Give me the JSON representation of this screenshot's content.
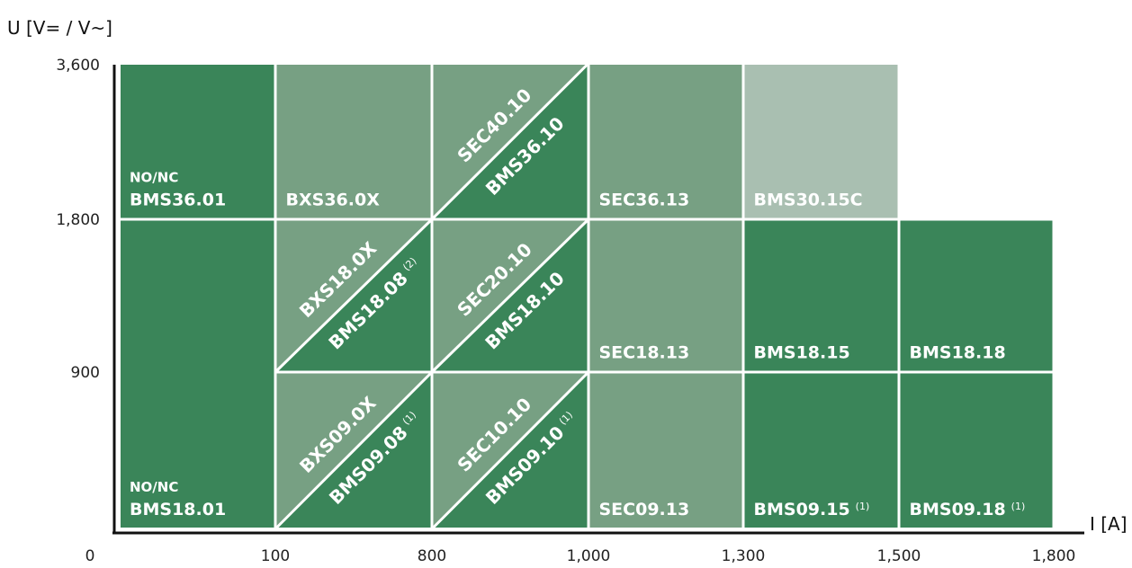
{
  "y_axis_title": "U [V= / V~]",
  "x_axis_title": "I [A]",
  "x_ticks": [
    "0",
    "100",
    "800",
    "1,000",
    "1,300",
    "1,500",
    "1,800"
  ],
  "y_ticks": [
    "3,600",
    "1,800",
    "900"
  ],
  "colors": {
    "dark": "#3a8559",
    "mid": "#77a083",
    "light": "#a9bfb1",
    "grid": "#ffffff",
    "axis": "#111111"
  },
  "cells": [
    {
      "id": "bms36-01",
      "col": 0,
      "row": 0,
      "shade": "dark",
      "label": "BMS36.01",
      "sub": "NO/NC"
    },
    {
      "id": "bms18-01",
      "col": 0,
      "row": 1,
      "rowspan": 2,
      "shade": "dark",
      "label": "BMS18.01",
      "sub": "NO/NC"
    },
    {
      "id": "bxs36-0x",
      "col": 1,
      "row": 0,
      "shade": "mid",
      "label": "BXS36.0X"
    },
    {
      "id": "sec36-13",
      "col": 3,
      "row": 0,
      "shade": "mid",
      "label": "SEC36.13"
    },
    {
      "id": "bms30-15c",
      "col": 4,
      "row": 0,
      "shade": "light",
      "label": "BMS30.15C"
    },
    {
      "id": "sec18-13",
      "col": 3,
      "row": 1,
      "shade": "mid",
      "label": "SEC18.13"
    },
    {
      "id": "bms18-15",
      "col": 4,
      "row": 1,
      "shade": "dark",
      "label": "BMS18.15"
    },
    {
      "id": "bms18-18",
      "col": 5,
      "row": 1,
      "shade": "dark",
      "label": "BMS18.18"
    },
    {
      "id": "sec09-13",
      "col": 3,
      "row": 2,
      "shade": "mid",
      "label": "SEC09.13"
    },
    {
      "id": "bms09-15",
      "col": 4,
      "row": 2,
      "shade": "dark",
      "label": "BMS09.15",
      "note": "(1)"
    },
    {
      "id": "bms09-18",
      "col": 5,
      "row": 2,
      "shade": "dark",
      "label": "BMS09.18",
      "note": "(1)"
    }
  ],
  "split_cells": [
    {
      "id": "sec40-bms36",
      "col": 2,
      "row": 0,
      "upper": "SEC40.10",
      "lower": "BMS36.10",
      "upper_note": "",
      "lower_note": ""
    },
    {
      "id": "bxs18-bms18-08",
      "col": 1,
      "row": 1,
      "upper": "BXS18.0X",
      "lower": "BMS18.08",
      "upper_note": "",
      "lower_note": "(2)"
    },
    {
      "id": "sec20-bms18-10",
      "col": 2,
      "row": 1,
      "upper": "SEC20.10",
      "lower": "BMS18.10",
      "upper_note": "",
      "lower_note": ""
    },
    {
      "id": "bxs09-bms09-08",
      "col": 1,
      "row": 2,
      "upper": "BXS09.0X",
      "lower": "BMS09.08",
      "upper_note": "",
      "lower_note": "(1)"
    },
    {
      "id": "sec10-bms09-10",
      "col": 2,
      "row": 2,
      "upper": "SEC10.10",
      "lower": "BMS09.10",
      "upper_note": "",
      "lower_note": "(1)"
    }
  ]
}
